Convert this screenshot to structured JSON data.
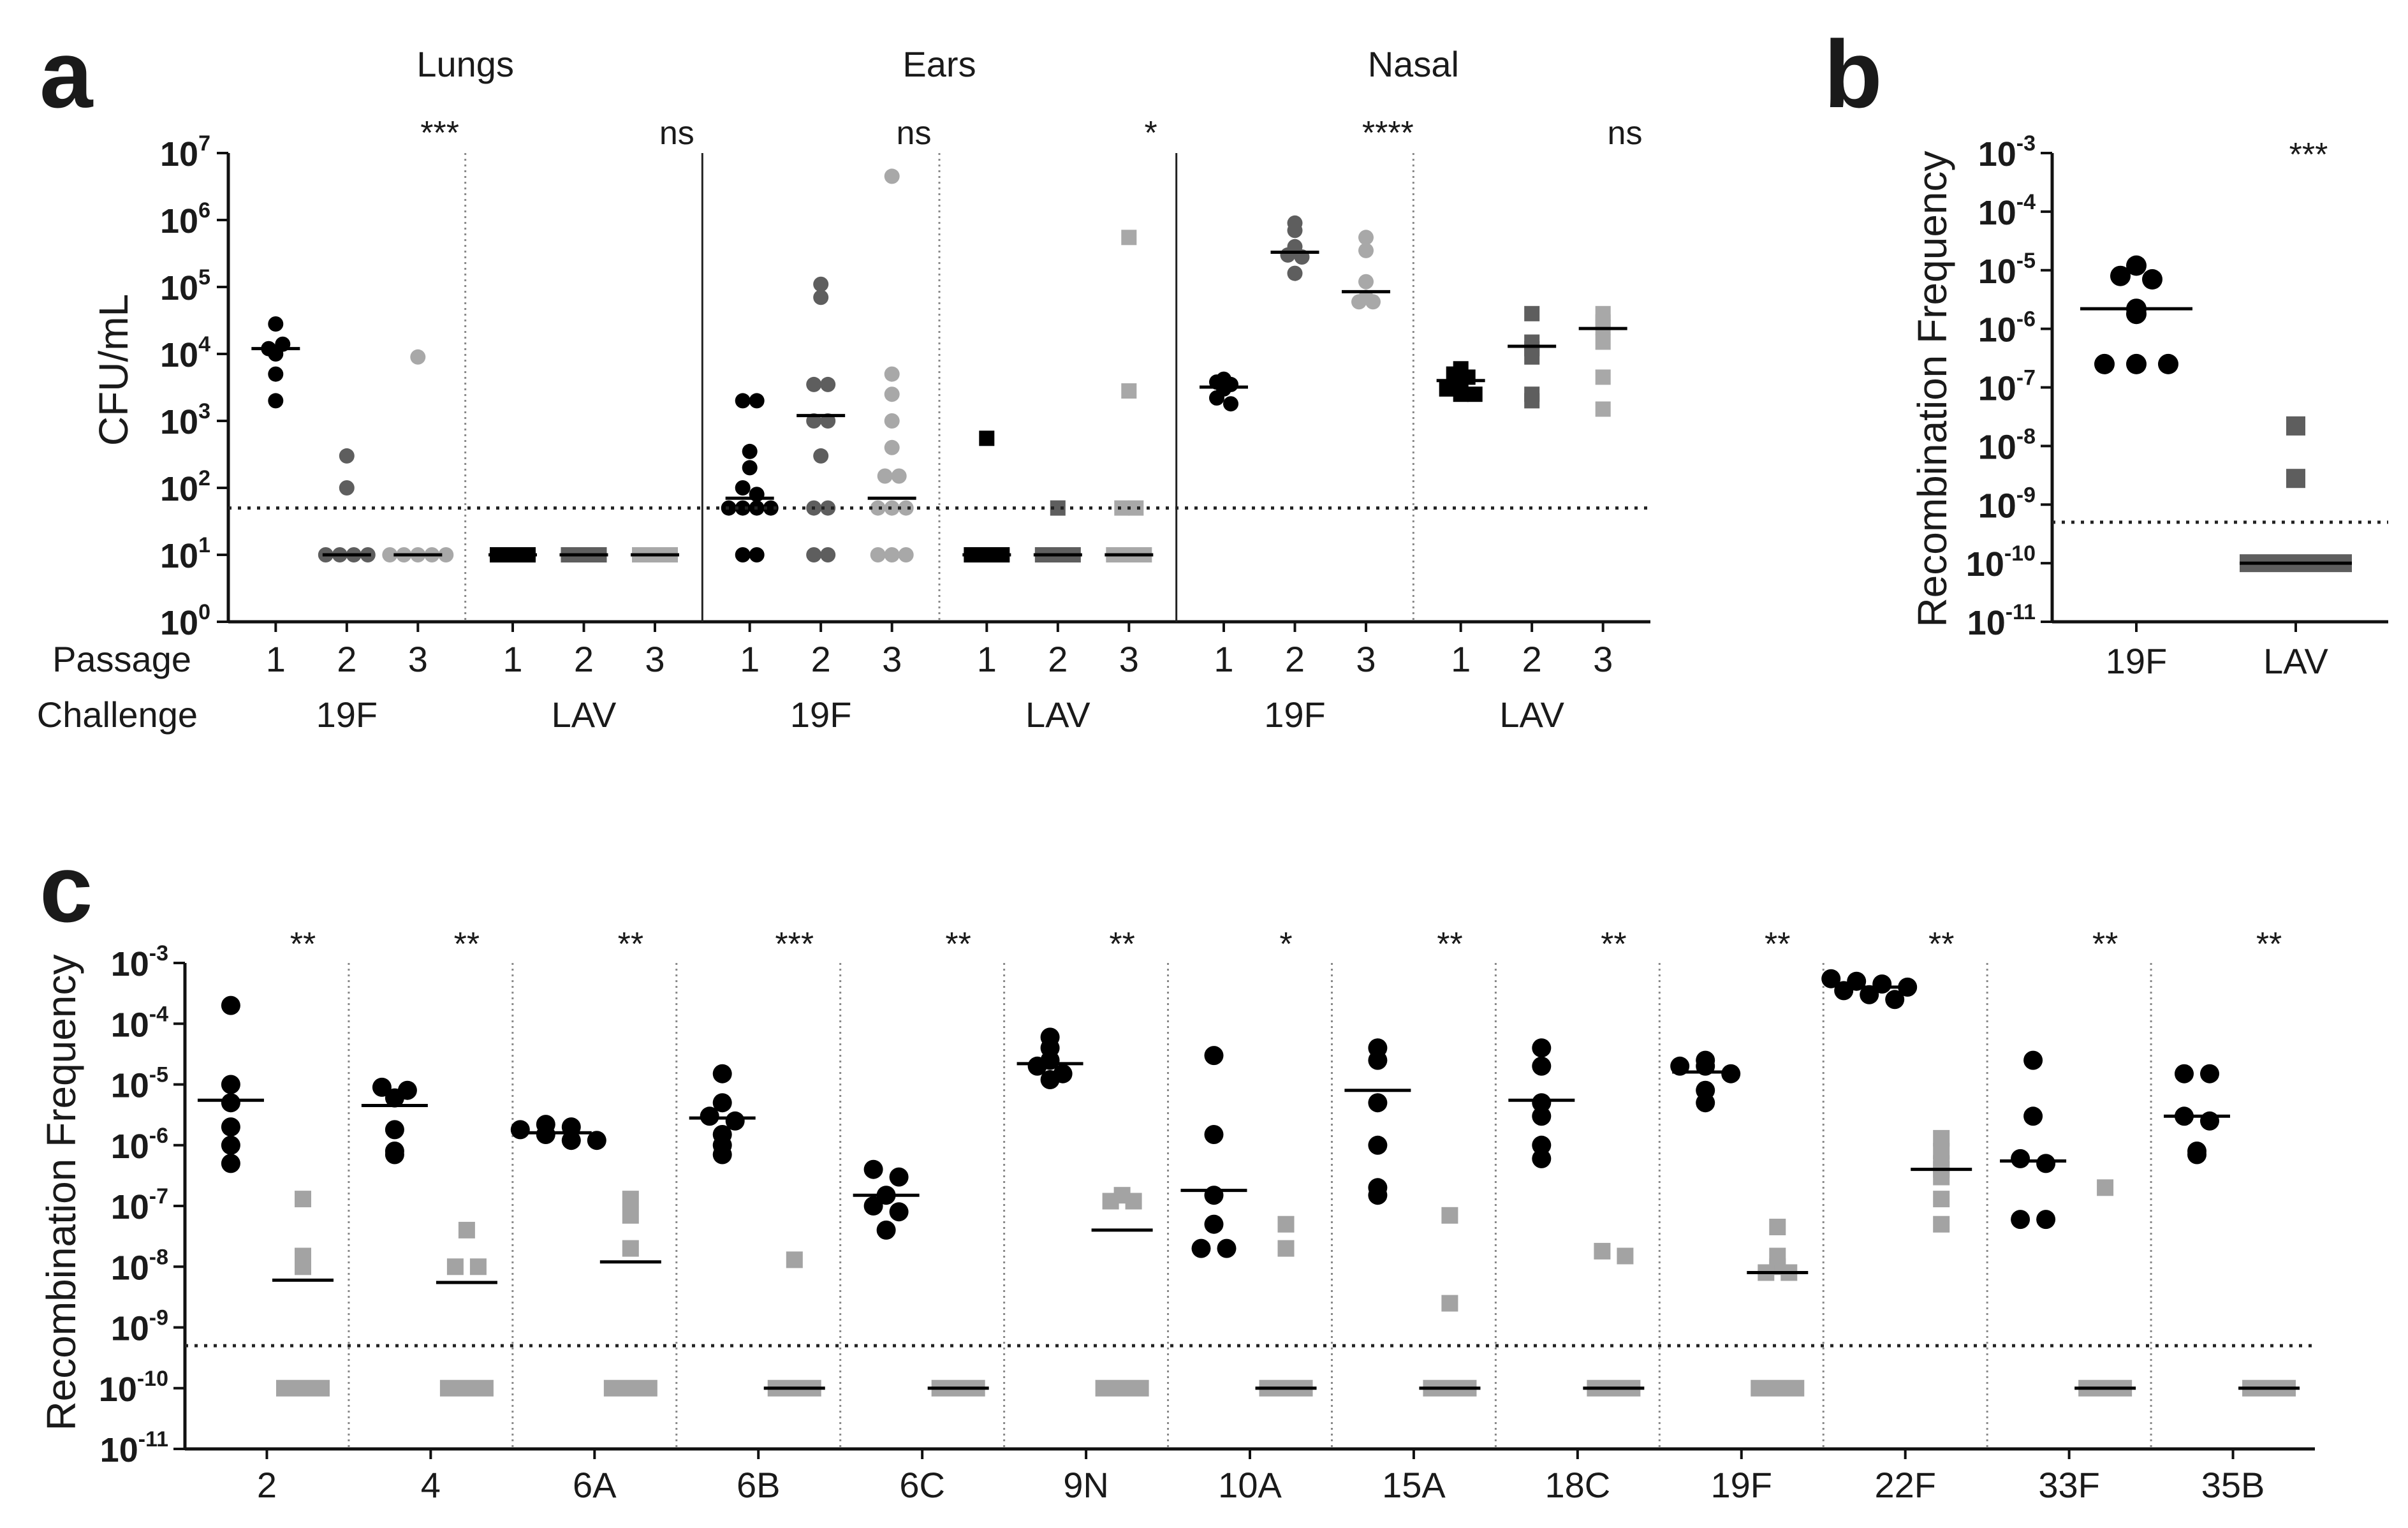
{
  "colors": {
    "passage1": "#000000",
    "passage2": "#5e5e5e",
    "passage3": "#a8a8a8",
    "lav_square": "#a3a3a3",
    "axis": "#111111",
    "median": "#000000"
  },
  "panels": {
    "a": {
      "letter": "a",
      "ylabel": "CFU/mL",
      "row_labels": {
        "passage": "Passage",
        "challenge": "Challenge"
      },
      "passage_ticks": [
        "1",
        "2",
        "3"
      ],
      "regions": [
        {
          "name": "Lungs",
          "groups": [
            {
              "challenge": "19F",
              "sig": "***"
            },
            {
              "challenge": "LAV",
              "sig": "ns"
            }
          ]
        },
        {
          "name": "Ears",
          "groups": [
            {
              "challenge": "19F",
              "sig": "ns"
            },
            {
              "challenge": "LAV",
              "sig": "*"
            }
          ]
        },
        {
          "name": "Nasal",
          "groups": [
            {
              "challenge": "19F",
              "sig": "****"
            },
            {
              "challenge": "LAV",
              "sig": "ns"
            }
          ]
        }
      ],
      "yticks": [
        "10^0",
        "10^1",
        "10^2",
        "10^3",
        "10^4",
        "10^5",
        "10^6",
        "10^7"
      ]
    },
    "b": {
      "letter": "b",
      "ylabel": "Recombination  Frequency",
      "categories": [
        "19F",
        "LAV"
      ],
      "sig": "***",
      "yticks": [
        "10^-11",
        "10^-10",
        "10^-9",
        "10^-8",
        "10^-7",
        "10^-6",
        "10^-5",
        "10^-4",
        "10^-3"
      ]
    },
    "c": {
      "letter": "c",
      "ylabel": "Recombination  Frequency",
      "serotypes": [
        "2",
        "4",
        "6A",
        "6B",
        "6C",
        "9N",
        "10A",
        "15A",
        "18C",
        "19F",
        "22F",
        "33F",
        "35B"
      ],
      "sigs": [
        "**",
        "**",
        "**",
        "***",
        "**",
        "**",
        "*",
        "**",
        "**",
        "**",
        "**",
        "**",
        "**"
      ],
      "yticks": [
        "10^-11",
        "10^-10",
        "10^-9",
        "10^-8",
        "10^-7",
        "10^-6",
        "10^-5",
        "10^-4",
        "10^-3"
      ]
    }
  },
  "chart_data": [
    {
      "panel": "a",
      "type": "scatter",
      "yscale": "log",
      "ylim": [
        1,
        10000000
      ],
      "ylabel": "CFU/mL",
      "detection_limit": 50,
      "groups": [
        {
          "region": "Lungs",
          "challenge": "19F",
          "passages": [
            {
              "passage": "1",
              "values": [
                12000,
                28000,
                14000,
                10000,
                5000,
                2000
              ],
              "median": 12000
            },
            {
              "passage": "2",
              "values": [
                300,
                100,
                10,
                10,
                10,
                10
              ],
              "median": 10
            },
            {
              "passage": "3",
              "values": [
                9000,
                10,
                10,
                10,
                10,
                10
              ],
              "median": 10
            }
          ]
        },
        {
          "region": "Lungs",
          "challenge": "LAV",
          "passages": [
            {
              "passage": "1",
              "values": [
                10,
                10,
                10,
                10,
                10,
                10
              ],
              "median": 10
            },
            {
              "passage": "2",
              "values": [
                10,
                10,
                10,
                10,
                10,
                10
              ],
              "median": 10
            },
            {
              "passage": "3",
              "values": [
                10,
                10,
                10,
                10,
                10,
                10
              ],
              "median": 10
            }
          ]
        },
        {
          "region": "Ears",
          "challenge": "19F",
          "passages": [
            {
              "passage": "1",
              "values": [
                2000,
                2000,
                350,
                200,
                100,
                80,
                50,
                50,
                50,
                50,
                10,
                10
              ],
              "median": 70
            },
            {
              "passage": "2",
              "values": [
                110000,
                70000,
                3500,
                3500,
                1000,
                1000,
                300,
                50,
                50,
                10,
                10
              ],
              "median": 1200
            },
            {
              "passage": "3",
              "values": [
                4500000,
                5000,
                2500,
                1000,
                400,
                150,
                150,
                50,
                50,
                50,
                10,
                10,
                10
              ],
              "median": 70
            }
          ]
        },
        {
          "region": "Ears",
          "challenge": "LAV",
          "passages": [
            {
              "passage": "1",
              "values": [
                550,
                10,
                10,
                10,
                10,
                10,
                10,
                10,
                10
              ],
              "median": 10
            },
            {
              "passage": "2",
              "values": [
                50,
                10,
                10,
                10,
                10,
                10,
                10,
                10
              ],
              "median": 10
            },
            {
              "passage": "3",
              "values": [
                550000,
                2800,
                50,
                50,
                10,
                10,
                10,
                10,
                10
              ],
              "median": 10
            }
          ]
        },
        {
          "region": "Nasal",
          "challenge": "19F",
          "passages": [
            {
              "passage": "1",
              "values": [
                4200,
                3800,
                3500,
                3000,
                2200,
                1800
              ],
              "median": 3200
            },
            {
              "passage": "2",
              "values": [
                900000,
                700000,
                400000,
                300000,
                280000,
                160000
              ],
              "median": 330000
            },
            {
              "passage": "3",
              "values": [
                550000,
                350000,
                120000,
                70000,
                60000,
                60000
              ],
              "median": 85000
            }
          ]
        },
        {
          "region": "Nasal",
          "challenge": "LAV",
          "passages": [
            {
              "passage": "1",
              "values": [
                6000,
                5000,
                4500,
                3500,
                3000,
                2500,
                2500
              ],
              "median": 4000
            },
            {
              "passage": "2",
              "values": [
                40000,
                15000,
                12000,
                9000,
                2500,
                2000
              ],
              "median": 13000
            },
            {
              "passage": "3",
              "values": [
                40000,
                30000,
                25000,
                15000,
                4500,
                1500
              ],
              "median": 24000
            }
          ]
        }
      ]
    },
    {
      "panel": "b",
      "type": "scatter",
      "yscale": "log",
      "ylim": [
        1e-11,
        0.001
      ],
      "ylabel": "Recombination  Frequency",
      "categories": [
        "19F",
        "LAV"
      ],
      "detection_limit": 5e-10,
      "series": [
        {
          "category": "19F",
          "values": [
            1.2e-05,
            8e-06,
            7e-06,
            2.2e-06,
            1.8e-06,
            2.5e-07,
            2.5e-07,
            2.5e-07
          ],
          "median": 2.2e-06
        },
        {
          "category": "LAV",
          "values": [
            2.2e-08,
            2.8e-09,
            1e-10,
            1e-10,
            1e-10,
            1e-10,
            1e-10,
            1e-10,
            1e-10
          ],
          "median": 1e-10
        }
      ]
    },
    {
      "panel": "c",
      "type": "scatter",
      "yscale": "log",
      "ylim": [
        1e-11,
        0.001
      ],
      "ylabel": "Recombination  Frequency",
      "detection_limit": 5e-10,
      "categories": [
        "2",
        "4",
        "6A",
        "6B",
        "6C",
        "9N",
        "10A",
        "15A",
        "18C",
        "19F",
        "22F",
        "33F",
        "35B"
      ],
      "groups": [
        {
          "serotype": "2",
          "strain": [
            0.0002,
            1e-05,
            5e-06,
            2e-06,
            1e-06,
            5e-07
          ],
          "strain_median": 5.5e-06,
          "lav": [
            1.3e-07,
            1.5e-08,
            1e-08,
            1e-10,
            1e-10,
            1e-10
          ],
          "lav_median": 6e-09
        },
        {
          "serotype": "4",
          "strain": [
            9e-06,
            8e-06,
            6e-06,
            1.8e-06,
            8e-07,
            7e-07
          ],
          "strain_median": 4.5e-06,
          "lav": [
            4e-08,
            1e-08,
            1e-08,
            1e-10,
            1e-10,
            1e-10
          ],
          "lav_median": 5.5e-09
        },
        {
          "serotype": "6A",
          "strain": [
            2.2e-06,
            2e-06,
            1.8e-06,
            1.5e-06,
            1.2e-06,
            1.2e-06
          ],
          "strain_median": 1.6e-06,
          "lav": [
            1.3e-07,
            7e-08,
            2e-08,
            1e-10,
            1e-10,
            1e-10
          ],
          "lav_median": 1.2e-08
        },
        {
          "serotype": "6B",
          "strain": [
            1.5e-05,
            5e-06,
            3e-06,
            2.5e-06,
            1.5e-06,
            1e-06,
            7e-07
          ],
          "strain_median": 2.8e-06,
          "lav": [
            1.3e-08,
            1e-10,
            1e-10,
            1e-10,
            1e-10
          ],
          "lav_median": 1e-10
        },
        {
          "serotype": "6C",
          "strain": [
            4e-07,
            3e-07,
            1.5e-07,
            1e-07,
            8e-08,
            4e-08
          ],
          "strain_median": 1.5e-07,
          "lav": [
            1e-10,
            1e-10,
            1e-10,
            1e-10,
            1e-10
          ],
          "lav_median": 1e-10
        },
        {
          "serotype": "9N",
          "strain": [
            6e-05,
            4e-05,
            2.5e-05,
            2e-05,
            1.5e-05,
            1.2e-05
          ],
          "strain_median": 2.2e-05,
          "lav": [
            1.5e-07,
            1.2e-07,
            1.2e-07,
            1e-10,
            1e-10,
            1e-10
          ],
          "lav_median": 4e-08
        },
        {
          "serotype": "10A",
          "strain": [
            3e-05,
            1.5e-06,
            1.5e-07,
            5e-08,
            2e-08,
            2e-08
          ],
          "strain_median": 1.8e-07,
          "lav": [
            5e-08,
            2e-08,
            1e-10,
            1e-10,
            1e-10,
            1e-10
          ],
          "lav_median": 1e-10
        },
        {
          "serotype": "15A",
          "strain": [
            4e-05,
            2.5e-05,
            5e-06,
            1e-06,
            2e-07,
            1.5e-07
          ],
          "strain_median": 8e-06,
          "lav": [
            7e-08,
            2.5e-09,
            1e-10,
            1e-10,
            1e-10,
            1e-10
          ],
          "lav_median": 1e-10
        },
        {
          "serotype": "18C",
          "strain": [
            4e-05,
            2e-05,
            5e-06,
            3e-06,
            1e-06,
            6e-07
          ],
          "strain_median": 5.5e-06,
          "lav": [
            1.8e-08,
            1.5e-08,
            1e-10,
            1e-10,
            1e-10,
            1e-10
          ],
          "lav_median": 1e-10
        },
        {
          "serotype": "19F",
          "strain": [
            2.5e-05,
            2e-05,
            2e-05,
            1.5e-05,
            8e-06,
            5e-06
          ],
          "strain_median": 1.6e-05,
          "lav": [
            4.5e-08,
            1.5e-08,
            1e-08,
            8e-09,
            8e-09,
            1e-10
          ],
          "lav_median": 8e-09
        },
        {
          "serotype": "22F",
          "strain": [
            0.00055,
            0.0005,
            0.00045,
            0.0004,
            0.00035,
            0.0003,
            0.00025
          ],
          "strain_median": 0.0004,
          "lav": [
            1.3e-06,
            8e-07,
            5e-07,
            4e-07,
            3e-07,
            1.3e-07,
            5e-08
          ],
          "lav_median": 4e-07
        },
        {
          "serotype": "33F",
          "strain": [
            2.5e-05,
            3e-06,
            6e-07,
            5e-07,
            6e-08,
            6e-08
          ],
          "strain_median": 5.5e-07,
          "lav": [
            2e-07,
            1e-10,
            1e-10,
            1e-10,
            1e-10,
            1e-10
          ],
          "lav_median": 1e-10
        },
        {
          "serotype": "35B",
          "strain": [
            1.5e-05,
            1.5e-05,
            3e-06,
            2.5e-06,
            8e-07,
            7e-07
          ],
          "strain_median": 3e-06,
          "lav": [
            1e-10,
            1e-10,
            1e-10,
            1e-10,
            1e-10,
            1e-10
          ],
          "lav_median": 1e-10
        }
      ]
    }
  ]
}
